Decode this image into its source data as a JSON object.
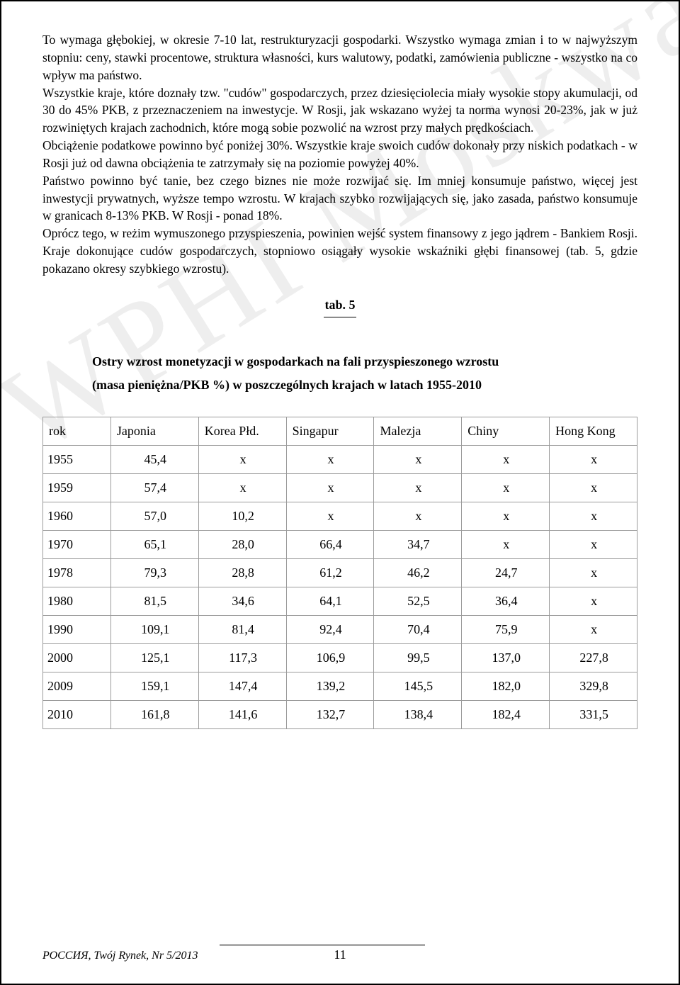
{
  "body": {
    "p1": "To wymaga głębokiej, w okresie 7-10 lat, restrukturyzacji gospodarki. Wszystko wymaga zmian i to w najwyższym stopniu: ceny, stawki procentowe, struktura własności, kurs walutowy, podatki, zamówienia publiczne - wszystko na co wpływ ma państwo.",
    "p2": "Wszystkie kraje, które doznały tzw. \"cudów\" gospodarczych, przez dziesięciolecia miały wysokie stopy akumulacji, od 30 do 45% PKB, z przeznaczeniem na inwestycje. W Rosji, jak wskazano wyżej ta norma wynosi 20-23%, jak w już rozwiniętych krajach zachodnich, które mogą sobie pozwolić na wzrost przy małych prędkościach.",
    "p3": "Obciążenie podatkowe powinno być poniżej 30%. Wszystkie kraje swoich cudów dokonały przy niskich podatkach - w Rosji już od dawna obciążenia te zatrzymały się na poziomie powyżej 40%.",
    "p4": "Państwo powinno być tanie, bez czego biznes nie może rozwijać się. Im mniej konsumuje państwo, więcej jest inwestycji prywatnych, wyższe tempo wzrostu. W krajach szybko rozwijających się, jako zasada, państwo konsumuje w granicach 8-13% PKB. W Rosji - ponad 18%.",
    "p5": "Oprócz tego, w reżim wymuszonego przyspieszenia, powinien wejść system finansowy z jego jądrem - Bankiem Rosji. Kraje dokonujące cudów gospodarczych, stopniowo osiągały wysokie wskaźniki głębi finansowej (tab. 5, gdzie pokazano okresy szybkiego wzrostu)."
  },
  "tab_caption": "tab. 5",
  "table_title_l1": "Ostry wzrost monetyzacji w gospodarkach na fali przyspieszonego wzrostu",
  "table_title_l2": "(masa pieniężna/PKB %) w poszczególnych krajach w latach 1955-2010",
  "table": {
    "columns": [
      "rok",
      "Japonia",
      "Korea Płd.",
      "Singapur",
      "Malezja",
      "Chiny",
      "Hong Kong"
    ],
    "rows": [
      [
        "1955",
        "45,4",
        "x",
        "x",
        "x",
        "x",
        "x"
      ],
      [
        "1959",
        "57,4",
        "x",
        "x",
        "x",
        "x",
        "x"
      ],
      [
        "1960",
        "57,0",
        "10,2",
        "x",
        "x",
        "x",
        "x"
      ],
      [
        "1970",
        "65,1",
        "28,0",
        "66,4",
        "34,7",
        "x",
        "x"
      ],
      [
        "1978",
        "79,3",
        "28,8",
        "61,2",
        "46,2",
        "24,7",
        "x"
      ],
      [
        "1980",
        "81,5",
        "34,6",
        "64,1",
        "52,5",
        "36,4",
        "x"
      ],
      [
        "1990",
        "109,1",
        "81,4",
        "92,4",
        "70,4",
        "75,9",
        "x"
      ],
      [
        "2000",
        "125,1",
        "117,3",
        "106,9",
        "99,5",
        "137,0",
        "227,8"
      ],
      [
        "2009",
        "159,1",
        "147,4",
        "139,2",
        "145,5",
        "182,0",
        "329,8"
      ],
      [
        "2010",
        "161,8",
        "141,6",
        "132,7",
        "138,4",
        "182,4",
        "331,5"
      ]
    ]
  },
  "footer": {
    "source": "РОССИЯ, Twój Rynek, Nr 5/2013",
    "page": "11"
  },
  "watermark": "WPHI Moskwa"
}
